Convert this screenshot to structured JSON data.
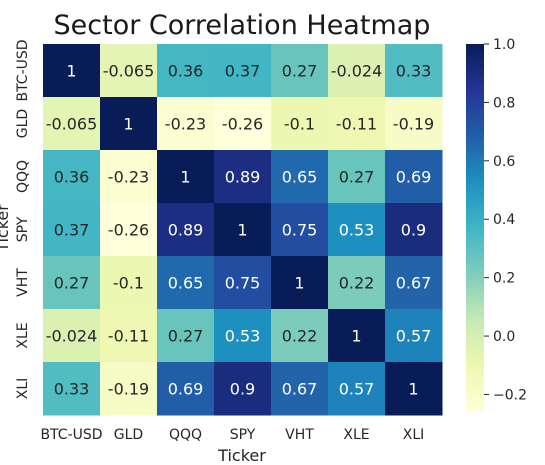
{
  "chart_data": {
    "type": "heatmap",
    "title": "Sector Correlation Heatmap",
    "xlabel": "Ticker",
    "ylabel": "Ticker",
    "x_categories": [
      "BTC-USD",
      "GLD",
      "QQQ",
      "SPY",
      "VHT",
      "XLE",
      "XLI"
    ],
    "y_categories": [
      "BTC-USD",
      "GLD",
      "QQQ",
      "SPY",
      "VHT",
      "XLE",
      "XLI"
    ],
    "values": [
      [
        1,
        -0.065,
        0.36,
        0.37,
        0.27,
        -0.024,
        0.33
      ],
      [
        -0.065,
        1,
        -0.23,
        -0.26,
        -0.1,
        -0.11,
        -0.19
      ],
      [
        0.36,
        -0.23,
        1,
        0.89,
        0.65,
        0.27,
        0.69
      ],
      [
        0.37,
        -0.26,
        0.89,
        1,
        0.75,
        0.53,
        0.9
      ],
      [
        0.27,
        -0.1,
        0.65,
        0.75,
        1,
        0.22,
        0.67
      ],
      [
        -0.024,
        -0.11,
        0.27,
        0.53,
        0.22,
        1,
        0.57
      ],
      [
        0.33,
        -0.19,
        0.69,
        0.9,
        0.67,
        0.57,
        1
      ]
    ],
    "annotations": [
      [
        "1",
        "-0.065",
        "0.36",
        "0.37",
        "0.27",
        "-0.024",
        "0.33"
      ],
      [
        "-0.065",
        "1",
        "-0.23",
        "-0.26",
        "-0.1",
        "-0.11",
        "-0.19"
      ],
      [
        "0.36",
        "-0.23",
        "1",
        "0.89",
        "0.65",
        "0.27",
        "0.69"
      ],
      [
        "0.37",
        "-0.26",
        "0.89",
        "1",
        "0.75",
        "0.53",
        "0.9"
      ],
      [
        "0.27",
        "-0.1",
        "0.65",
        "0.75",
        "1",
        "0.22",
        "0.67"
      ],
      [
        "-0.024",
        "-0.11",
        "0.27",
        "0.53",
        "0.22",
        "1",
        "0.57"
      ],
      [
        "0.33",
        "-0.19",
        "0.69",
        "0.9",
        "0.67",
        "0.57",
        "1"
      ]
    ],
    "colormap": "YlGnBu",
    "colormap_stops": [
      "#ffffd9",
      "#edf8b1",
      "#c7e9b4",
      "#7fcdbb",
      "#41b6c4",
      "#1d91c0",
      "#225ea8",
      "#253494",
      "#081d58"
    ],
    "vmin": -0.26,
    "vmax": 1.0,
    "colorbar_ticks": [
      1.0,
      0.8,
      0.6,
      0.4,
      0.2,
      0.0,
      -0.2
    ],
    "colorbar_tick_labels": [
      "1.0",
      "0.8",
      "0.6",
      "0.4",
      "0.2",
      "0.0",
      "−0.2"
    ],
    "grid": false
  }
}
